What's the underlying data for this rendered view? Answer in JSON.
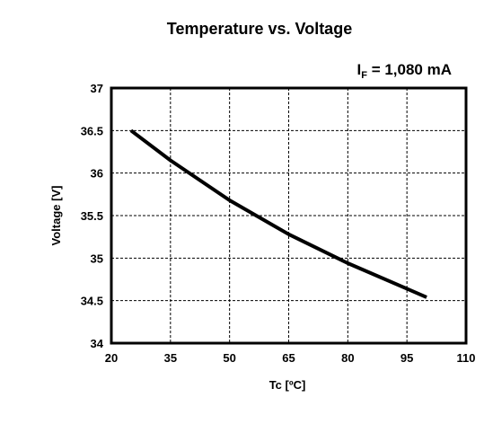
{
  "chart_data": {
    "type": "line",
    "title": "Temperature vs. Voltage",
    "annotation": {
      "main": "I",
      "sub": "F",
      "rest": " = 1,080 mA"
    },
    "xlabel": "Tc [ºC]",
    "ylabel": "Voltage [V]",
    "xlim": [
      20,
      110
    ],
    "ylim": [
      34,
      37
    ],
    "x_ticks": [
      20,
      35,
      50,
      65,
      80,
      95,
      110
    ],
    "x_tick_labels": [
      "20",
      "35",
      "50",
      "65",
      "80",
      "95",
      "110"
    ],
    "y_ticks": [
      34,
      34.5,
      35,
      35.5,
      36,
      36.5,
      37
    ],
    "y_tick_labels": [
      "34",
      "34.5",
      "35",
      "35.5",
      "36",
      "36.5",
      "37"
    ],
    "grid": true,
    "series": [
      {
        "color": "#000000",
        "x": [
          25,
          35,
          50,
          65,
          80,
          95,
          100
        ],
        "y": [
          36.5,
          36.15,
          35.68,
          35.28,
          34.94,
          34.64,
          34.54
        ]
      }
    ]
  }
}
